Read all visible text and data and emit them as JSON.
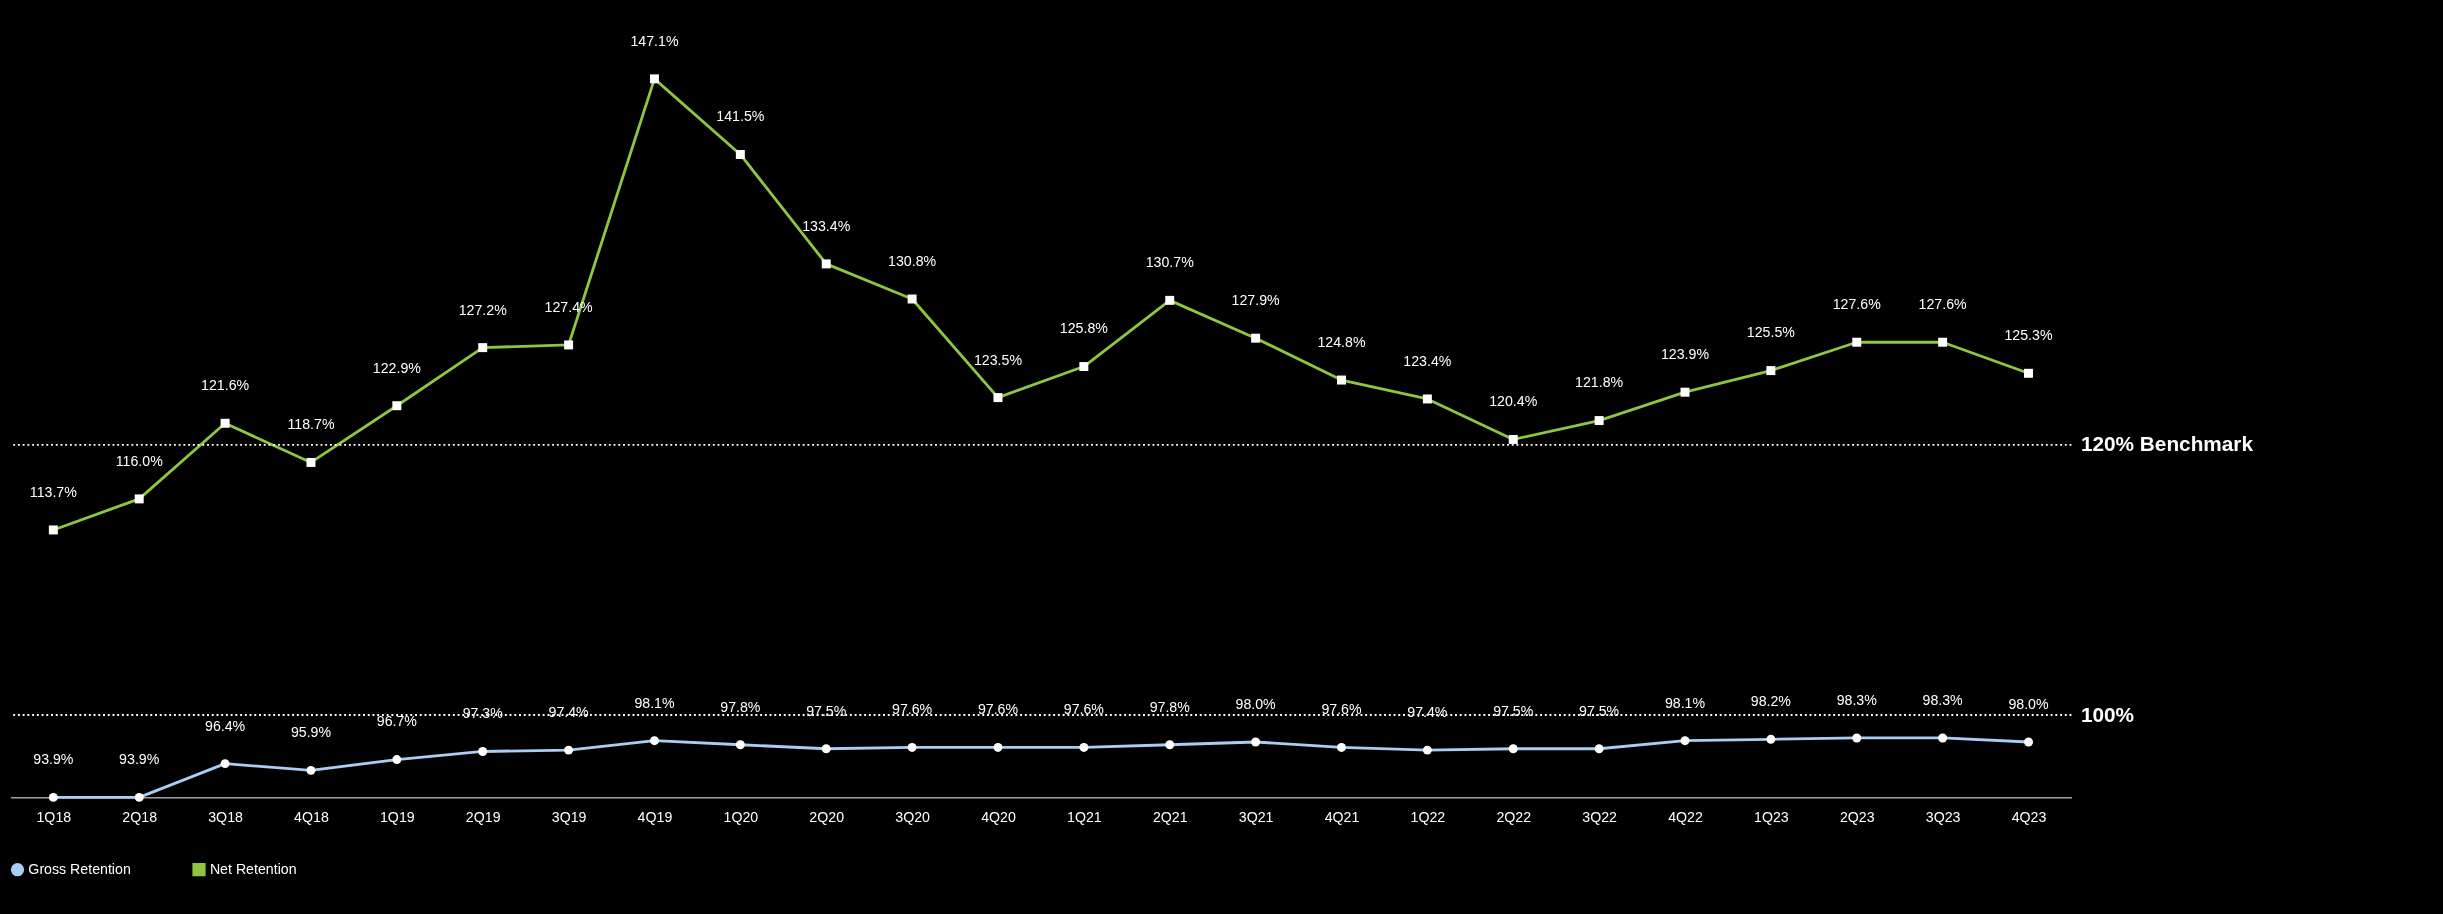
{
  "chart_data": {
    "type": "line",
    "categories": [
      "1Q18",
      "2Q18",
      "3Q18",
      "4Q18",
      "1Q19",
      "2Q19",
      "3Q19",
      "4Q19",
      "1Q20",
      "2Q20",
      "3Q20",
      "4Q20",
      "1Q21",
      "2Q21",
      "3Q21",
      "4Q21",
      "1Q22",
      "2Q22",
      "3Q22",
      "4Q22",
      "1Q23",
      "2Q23",
      "3Q23",
      "4Q23"
    ],
    "series": [
      {
        "name": "Gross Retention",
        "color": "#a9cdf3",
        "marker": "circle",
        "line_style": "solid",
        "values": [
          93.9,
          93.9,
          96.4,
          95.9,
          96.7,
          97.3,
          97.4,
          98.1,
          97.8,
          97.5,
          97.6,
          97.6,
          97.6,
          97.8,
          98.0,
          97.6,
          97.4,
          97.5,
          97.5,
          98.1,
          98.2,
          98.3,
          98.3,
          98.0
        ],
        "value_labels": [
          "93.9%",
          "93.9%",
          "96.4%",
          "95.9%",
          "96.7%",
          "97.3%",
          "97.4%",
          "98.1%",
          "97.8%",
          "97.5%",
          "97.6%",
          "97.6%",
          "97.6%",
          "97.8%",
          "98.0%",
          "97.6%",
          "97.4%",
          "97.5%",
          "97.5%",
          "98.1%",
          "98.2%",
          "98.3%",
          "98.3%",
          "98.0%"
        ]
      },
      {
        "name": "Net Retention",
        "color": "#8dc63f",
        "marker": "square",
        "line_style": "solid",
        "values": [
          113.7,
          116.0,
          121.6,
          118.7,
          122.9,
          127.2,
          127.4,
          147.1,
          141.5,
          133.4,
          130.8,
          123.5,
          125.8,
          130.7,
          127.9,
          124.8,
          123.4,
          120.4,
          121.8,
          123.9,
          125.5,
          127.6,
          127.6,
          125.3
        ],
        "value_labels": [
          "113.7%",
          "116.0%",
          "121.6%",
          "118.7%",
          "122.9%",
          "127.2%",
          "127.4%",
          "147.1%",
          "141.5%",
          "133.4%",
          "130.8%",
          "123.5%",
          "125.8%",
          "130.7%",
          "127.9%",
          "124.8%",
          "123.4%",
          "120.4%",
          "121.8%",
          "123.9%",
          "125.5%",
          "127.6%",
          "127.6%",
          "125.3%"
        ]
      }
    ],
    "ref_lines": [
      {
        "axis": "y",
        "value": 120,
        "label": "120% Benchmark",
        "color": "#ffffff",
        "line_style": "dotted"
      },
      {
        "axis": "y",
        "value": 100,
        "label": "100%",
        "color": "#ffffff",
        "line_style": "dotted"
      }
    ],
    "tick_labels": "x",
    "legend": "bottom"
  }
}
